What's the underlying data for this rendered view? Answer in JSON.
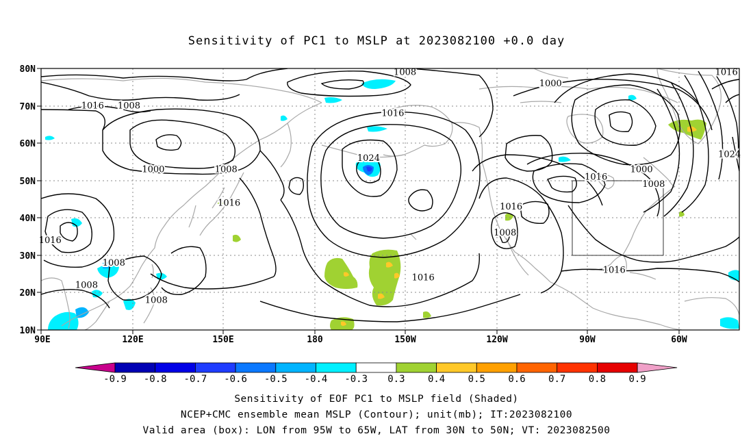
{
  "title": "Sensitivity of PC1 to MSLP at 2023082100 +0.0 day",
  "lat_labels": [
    "80N",
    "70N",
    "60N",
    "50N",
    "40N",
    "30N",
    "20N",
    "10N"
  ],
  "lon_labels": [
    "90E",
    "120E",
    "150E",
    "180",
    "150W",
    "120W",
    "90W",
    "60W"
  ],
  "colorbar": {
    "labels": [
      "-0.9",
      "-0.8",
      "-0.7",
      "-0.6",
      "-0.5",
      "-0.4",
      "-0.3",
      "0.3",
      "0.4",
      "0.5",
      "0.6",
      "0.7",
      "0.8",
      "0.9"
    ],
    "colors": [
      "#c8008c",
      "#0000b4",
      "#0000e6",
      "#1e3cff",
      "#0a78ff",
      "#00b4ff",
      "#00f0ff",
      "#ffffff",
      "#a0d232",
      "#ffc828",
      "#ffa000",
      "#ff6400",
      "#ff3200",
      "#e60000",
      "#f0a0c8"
    ]
  },
  "contour_labels": [
    {
      "text": "1008",
      "lon": -150,
      "lat": 79
    },
    {
      "text": "1016",
      "lon": -44,
      "lat": 79
    },
    {
      "text": "1000",
      "lon": -102,
      "lat": 76
    },
    {
      "text": "1016",
      "lon": 107,
      "lat": 70
    },
    {
      "text": "1008",
      "lon": 119,
      "lat": 70
    },
    {
      "text": "1016",
      "lon": -154,
      "lat": 68
    },
    {
      "text": "1024",
      "lon": -162,
      "lat": 56
    },
    {
      "text": "1000",
      "lon": 127,
      "lat": 53
    },
    {
      "text": "1008",
      "lon": 151,
      "lat": 53
    },
    {
      "text": "1016",
      "lon": -87,
      "lat": 51
    },
    {
      "text": "1000",
      "lon": -72,
      "lat": 53
    },
    {
      "text": "1008",
      "lon": -68,
      "lat": 49
    },
    {
      "text": "1024",
      "lon": -43,
      "lat": 57
    },
    {
      "text": "1016",
      "lon": 152,
      "lat": 44
    },
    {
      "text": "1016",
      "lon": -115,
      "lat": 43
    },
    {
      "text": "1008",
      "lon": -117,
      "lat": 36
    },
    {
      "text": "1016",
      "lon": 93,
      "lat": 34
    },
    {
      "text": "1008",
      "lon": 114,
      "lat": 28
    },
    {
      "text": "1016",
      "lon": -81,
      "lat": 26
    },
    {
      "text": "1016",
      "lon": -144,
      "lat": 24
    },
    {
      "text": "1008",
      "lon": 105,
      "lat": 22
    },
    {
      "text": "1008",
      "lon": 128,
      "lat": 18
    }
  ],
  "captions": {
    "line1": "Sensitivity of EOF PC1 to MSLP field (Shaded)",
    "line2": "NCEP+CMC ensemble mean MSLP (Contour); unit(mb); IT:2023082100",
    "line3": "Valid area (box): LON from 95W to 65W, LAT from 30N to 50N; VT: 2023082500"
  }
}
